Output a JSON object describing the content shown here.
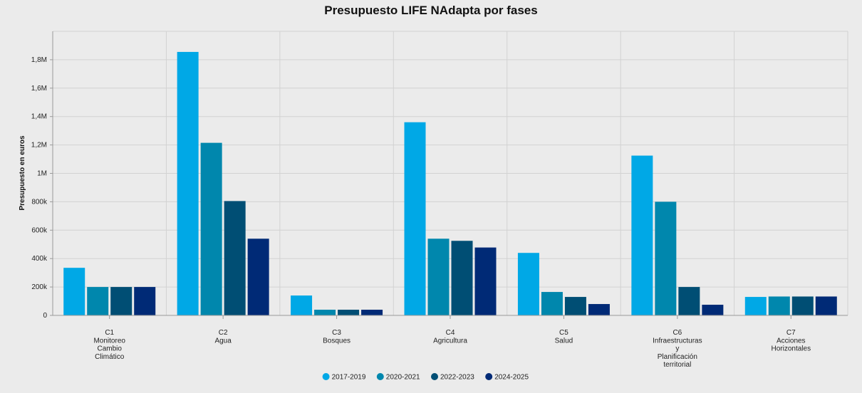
{
  "chart_data": {
    "type": "bar",
    "title": "Presupuesto LIFE NAdapta por fases",
    "ylabel": "Presupuesto en euros",
    "xlabel": "",
    "ylim": [
      0,
      2000000
    ],
    "yticks": [
      0,
      200000,
      400000,
      600000,
      800000,
      1000000,
      1200000,
      1400000,
      1600000,
      1800000
    ],
    "ytick_labels": [
      "0",
      "200k",
      "400k",
      "600k",
      "800k",
      "1M",
      "1,2M",
      "1,4M",
      "1,6M",
      "1,8M"
    ],
    "categories": [
      [
        "C1",
        "Monitoreo",
        "Cambio",
        "Climático"
      ],
      [
        "C2",
        "Agua"
      ],
      [
        "C3",
        "Bosques"
      ],
      [
        "C4",
        "Agricultura"
      ],
      [
        "C5",
        "Salud"
      ],
      [
        "C6",
        "Infraestructuras",
        "y",
        "Planificación",
        "territorial"
      ],
      [
        "C7",
        "Acciones",
        "Horizontales"
      ]
    ],
    "series": [
      {
        "name": "2017-2019",
        "color": "#00a8e6",
        "values": [
          335000,
          1855000,
          140000,
          1360000,
          440000,
          1125000,
          130000
        ]
      },
      {
        "name": "2020-2021",
        "color": "#0087ad",
        "values": [
          200000,
          1215000,
          40000,
          540000,
          165000,
          800000,
          133000
        ]
      },
      {
        "name": "2022-2023",
        "color": "#004e74",
        "values": [
          200000,
          805000,
          40000,
          525000,
          130000,
          200000,
          133000
        ]
      },
      {
        "name": "2024-2025",
        "color": "#002a76",
        "values": [
          200000,
          540000,
          40000,
          478000,
          80000,
          75000,
          133000
        ]
      }
    ],
    "grid": true,
    "legend_position": "bottom-center"
  }
}
